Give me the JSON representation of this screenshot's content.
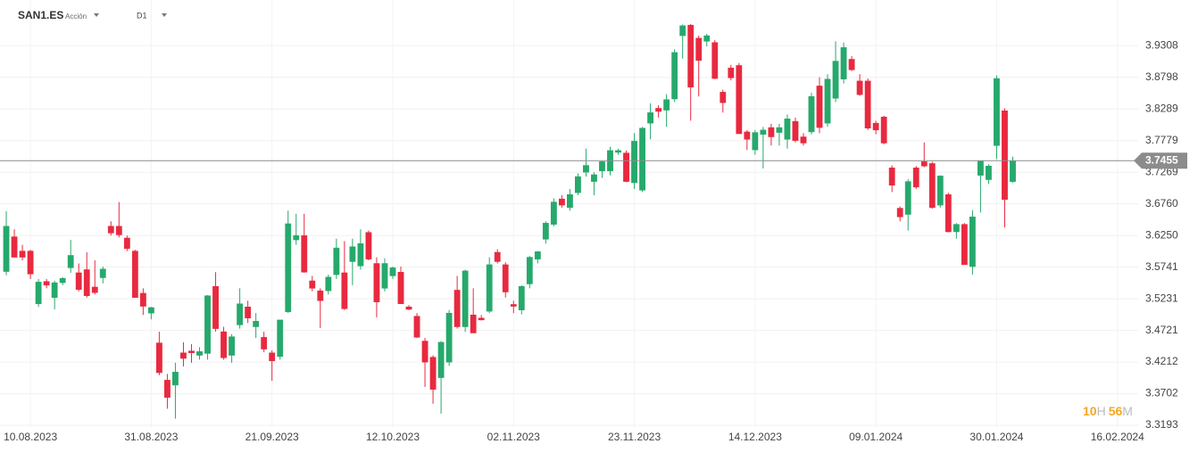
{
  "chart_data": {
    "type": "candlestick",
    "symbol": "SAN1.ES",
    "instrument_type": "Acción",
    "timeframe": "D1",
    "up_color": "#26a96c",
    "down_color": "#e8293f",
    "last_price": 3.7455,
    "countdown": {
      "hours": "10",
      "hours_unit": "H",
      "minutes": "56",
      "minutes_unit": "M"
    },
    "open": [
      3.567,
      3.623,
      3.6,
      3.6,
      3.515,
      3.551,
      3.525,
      3.549,
      3.573,
      3.565,
      3.57,
      3.542,
      3.557,
      3.64,
      3.64,
      3.621,
      3.6,
      3.532,
      3.5,
      3.452,
      3.392,
      3.384,
      3.436,
      3.439,
      3.432,
      3.435,
      3.543,
      3.47,
      3.432,
      3.481,
      3.51,
      3.478,
      3.461,
      3.436,
      3.43,
      3.502,
      3.618,
      3.625,
      3.552,
      3.536,
      3.536,
      3.562,
      3.565,
      3.583,
      3.576,
      3.63,
      3.58,
      3.54,
      3.56,
      3.566,
      3.51,
      3.495,
      3.455,
      3.429,
      3.396,
      3.421,
      3.537,
      3.478,
      3.497,
      3.492,
      3.503,
      3.598,
      3.578,
      3.514,
      3.505,
      3.547,
      3.587,
      3.619,
      3.643,
      3.684,
      3.67,
      3.694,
      3.727,
      3.712,
      3.729,
      3.729,
      3.759,
      3.758,
      3.71,
      3.698,
      3.806,
      3.83,
      3.827,
      3.845,
      3.947,
      3.964,
      3.943,
      3.938,
      3.936,
      3.856,
      3.895,
      3.899,
      3.792,
      3.763,
      3.788,
      3.799,
      3.791,
      3.78,
      3.809,
      3.784,
      3.792,
      3.866,
      3.806,
      3.846,
      3.877,
      3.909,
      3.874,
      3.874,
      3.806,
      3.816,
      3.734,
      3.669,
      3.659,
      3.734,
      3.744,
      3.741,
      3.674,
      3.691,
      3.631,
      3.643,
      3.575,
      3.722,
      3.715,
      3.77,
      3.826,
      3.712
    ],
    "high": [
      3.664,
      3.635,
      3.61,
      3.602,
      3.555,
      3.555,
      3.552,
      3.558,
      3.618,
      3.58,
      3.598,
      3.585,
      3.575,
      3.648,
      3.679,
      3.625,
      3.602,
      3.54,
      3.51,
      3.47,
      3.402,
      3.42,
      3.453,
      3.45,
      3.445,
      3.529,
      3.566,
      3.478,
      3.466,
      3.54,
      3.52,
      3.5,
      3.47,
      3.44,
      3.489,
      3.665,
      3.66,
      3.66,
      3.56,
      3.54,
      3.562,
      3.62,
      3.616,
      3.62,
      3.635,
      3.633,
      3.59,
      3.588,
      3.575,
      3.575,
      3.513,
      3.5,
      3.46,
      3.432,
      3.455,
      3.505,
      3.56,
      3.57,
      3.54,
      3.497,
      3.59,
      3.603,
      3.582,
      3.52,
      3.545,
      3.592,
      3.6,
      3.648,
      3.685,
      3.69,
      3.7,
      3.725,
      3.765,
      3.727,
      3.745,
      3.768,
      3.765,
      3.762,
      3.79,
      3.8,
      3.838,
      3.835,
      3.853,
      3.925,
      3.965,
      3.966,
      3.947,
      3.95,
      3.94,
      3.86,
      3.9,
      3.903,
      3.795,
      3.795,
      3.8,
      3.805,
      3.805,
      3.82,
      3.815,
      3.79,
      3.855,
      3.88,
      3.885,
      3.938,
      3.936,
      3.914,
      3.885,
      3.878,
      3.81,
      3.818,
      3.738,
      3.672,
      3.716,
      3.737,
      3.775,
      3.744,
      3.722,
      3.694,
      3.645,
      3.645,
      3.666,
      3.746,
      3.74,
      3.883,
      3.83,
      3.752
    ],
    "low": [
      3.561,
      3.59,
      3.585,
      3.555,
      3.51,
      3.54,
      3.506,
      3.545,
      3.565,
      3.535,
      3.525,
      3.53,
      3.548,
      3.625,
      3.622,
      3.6,
      3.525,
      3.497,
      3.49,
      3.4,
      3.346,
      3.33,
      3.414,
      3.42,
      3.425,
      3.425,
      3.47,
      3.425,
      3.42,
      3.475,
      3.484,
      3.46,
      3.437,
      3.391,
      3.425,
      3.5,
      3.61,
      3.565,
      3.535,
      3.476,
      3.53,
      3.555,
      3.505,
      3.545,
      3.57,
      3.585,
      3.493,
      3.535,
      3.555,
      3.515,
      3.505,
      3.46,
      3.381,
      3.354,
      3.338,
      3.415,
      3.475,
      3.47,
      3.468,
      3.488,
      3.5,
      3.58,
      3.525,
      3.5,
      3.498,
      3.54,
      3.58,
      3.612,
      3.64,
      3.67,
      3.665,
      3.69,
      3.72,
      3.69,
      3.718,
      3.722,
      3.755,
      3.711,
      3.7,
      3.695,
      3.78,
      3.815,
      3.8,
      3.84,
      3.91,
      3.81,
      3.849,
      3.93,
      3.877,
      3.823,
      3.875,
      3.79,
      3.763,
      3.755,
      3.733,
      3.77,
      3.77,
      3.765,
      3.775,
      3.77,
      3.788,
      3.79,
      3.8,
      3.84,
      3.87,
      3.89,
      3.85,
      3.795,
      3.788,
      3.772,
      3.695,
      3.648,
      3.633,
      3.7,
      3.735,
      3.668,
      3.67,
      3.63,
      3.62,
      3.578,
      3.562,
      3.662,
      3.708,
      3.748,
      3.638,
      3.71
    ],
    "close": [
      3.64,
      3.59,
      3.59,
      3.563,
      3.55,
      3.545,
      3.549,
      3.556,
      3.593,
      3.538,
      3.528,
      3.533,
      3.571,
      3.629,
      3.626,
      3.604,
      3.525,
      3.511,
      3.509,
      3.404,
      3.364,
      3.405,
      3.427,
      3.436,
      3.438,
      3.528,
      3.475,
      3.428,
      3.462,
      3.515,
      3.492,
      3.487,
      3.442,
      3.423,
      3.489,
      3.644,
      3.625,
      3.566,
      3.54,
      3.52,
      3.558,
      3.605,
      3.507,
      3.607,
      3.612,
      3.587,
      3.518,
      3.58,
      3.573,
      3.515,
      3.506,
      3.461,
      3.421,
      3.377,
      3.453,
      3.5,
      3.478,
      3.568,
      3.468,
      3.489,
      3.578,
      3.583,
      3.534,
      3.511,
      3.543,
      3.59,
      3.599,
      3.645,
      3.679,
      3.674,
      3.691,
      3.72,
      3.738,
      3.723,
      3.744,
      3.762,
      3.762,
      3.712,
      3.777,
      3.798,
      3.823,
      3.825,
      3.844,
      3.92,
      3.963,
      3.864,
      3.907,
      3.947,
      3.878,
      3.839,
      3.879,
      3.789,
      3.78,
      3.791,
      3.795,
      3.784,
      3.799,
      3.813,
      3.778,
      3.774,
      3.849,
      3.799,
      3.877,
      3.906,
      3.928,
      3.892,
      3.852,
      3.798,
      3.795,
      3.774,
      3.706,
      3.655,
      3.712,
      3.703,
      3.737,
      3.67,
      3.721,
      3.631,
      3.643,
      3.578,
      3.655,
      3.745,
      3.737,
      3.878,
      3.683,
      3.7455
    ],
    "xlim": [
      -0.78,
      139.47
    ],
    "xticks": [
      {
        "value": 3,
        "label": "10.08.2023"
      },
      {
        "value": 18,
        "label": "31.08.2023"
      },
      {
        "value": 33,
        "label": "21.09.2023"
      },
      {
        "value": 48,
        "label": "12.10.2023"
      },
      {
        "value": 63,
        "label": "02.11.2023"
      },
      {
        "value": 78,
        "label": "23.11.2023"
      },
      {
        "value": 93,
        "label": "14.12.2023"
      },
      {
        "value": 108,
        "label": "09.01.2024"
      },
      {
        "value": 123,
        "label": "30.01.2024"
      },
      {
        "value": 138,
        "label": "16.02.2024"
      }
    ],
    "ylim": [
      3.315,
      3.993
    ],
    "yticks": [
      3.9308,
      3.8798,
      3.8289,
      3.7779,
      3.7269,
      {
        "value": 3.676,
        "label": "3.6760"
      },
      {
        "value": 3.625,
        "label": "3.6250"
      },
      3.5741,
      3.5231,
      3.4721,
      3.4212,
      3.3702,
      3.3193
    ],
    "grid": true
  }
}
